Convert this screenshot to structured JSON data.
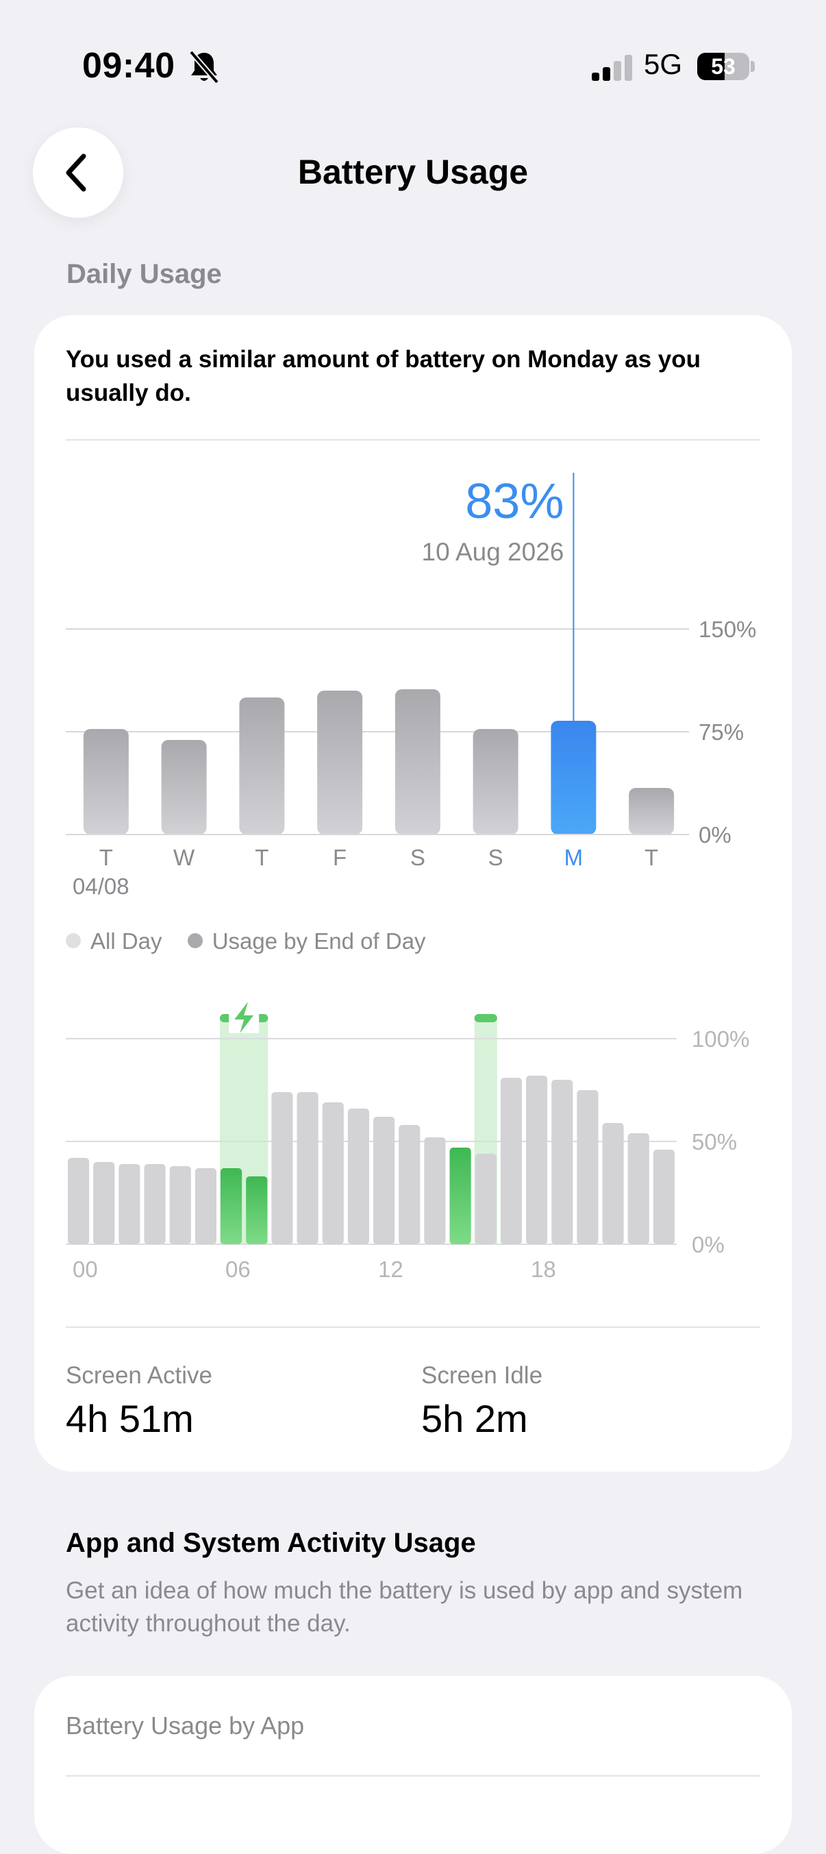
{
  "status_bar": {
    "time": "09:40",
    "network": "5G",
    "battery_level": "53",
    "battery_fraction": 0.53
  },
  "nav": {
    "title": "Battery Usage",
    "back_icon": "chevron-left-icon"
  },
  "daily": {
    "section_label": "Daily Usage",
    "summary": "You used a similar amount of battery on Monday as you usually do.",
    "selected_value": "83%",
    "selected_date": "10 Aug 2026",
    "date_label": "04/08",
    "legend": [
      {
        "label": "All Day",
        "color": "#e0e0e3"
      },
      {
        "label": "Usage by End of Day",
        "color": "#a9a9ae"
      }
    ]
  },
  "chart_data": [
    {
      "type": "bar",
      "categories": [
        "T",
        "W",
        "T",
        "F",
        "S",
        "S",
        "M",
        "T"
      ],
      "values": [
        77,
        69,
        100,
        105,
        106,
        77,
        83,
        34
      ],
      "selected_index": 6,
      "ylim": [
        0,
        150
      ],
      "yticks": [
        "0%",
        "75%",
        "150%"
      ],
      "colors": {
        "bar": "#b4b4b8",
        "selected": "#3b8ef0"
      }
    },
    {
      "type": "bar",
      "x_tick_labels": [
        "00",
        "06",
        "12",
        "18"
      ],
      "values": [
        42,
        40,
        39,
        39,
        38,
        37,
        37,
        33,
        74,
        74,
        69,
        66,
        62,
        58,
        52,
        47,
        44,
        81,
        82,
        80,
        75,
        59,
        54,
        46
      ],
      "charging_bars": [
        6,
        7,
        15
      ],
      "charging_periods": [
        [
          6,
          8
        ],
        [
          16,
          17
        ]
      ],
      "ylim": [
        0,
        100
      ],
      "yticks": [
        "0%",
        "50%",
        "100%"
      ],
      "colors": {
        "bar": "#d3d3d6",
        "charging": "#5cc96a",
        "charging_band": "#d7f2d9"
      }
    }
  ],
  "stats": {
    "screen_active_label": "Screen Active",
    "screen_active_value": "4h 51m",
    "screen_idle_label": "Screen Idle",
    "screen_idle_value": "5h 2m"
  },
  "activity": {
    "title": "App and System Activity Usage",
    "description": "Get an idea of how much the battery is used by app and system activity throughout the day.",
    "card_label": "Battery Usage by App"
  }
}
